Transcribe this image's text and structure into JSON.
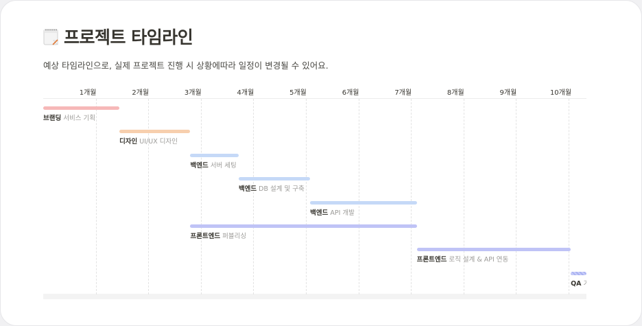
{
  "page": {
    "title": "프로젝트 타임라인",
    "subtitle": "예상 타임라인으로, 실제 프로젝트 진행 시 상황에따라 일정이 변경될 수 있어요.",
    "icon": "memo-icon"
  },
  "timeline": {
    "months": [
      "1개월",
      "2개월",
      "3개월",
      "4개월",
      "5개월",
      "6개월",
      "7개월",
      "8개월",
      "9개월",
      "10개월"
    ],
    "tasks": [
      {
        "name": "브랜딩",
        "desc": "서비스 기획",
        "start": 0.0,
        "end": 1.45,
        "color": "#f6b8b8"
      },
      {
        "name": "디자인",
        "desc": "UI/UX 디자인",
        "start": 1.45,
        "end": 2.8,
        "color": "#f7cfae"
      },
      {
        "name": "백엔드",
        "desc": "서버 세팅",
        "start": 2.8,
        "end": 3.72,
        "color": "#c5d9f7"
      },
      {
        "name": "백엔드",
        "desc": "DB 설계 및 구축",
        "start": 3.72,
        "end": 5.08,
        "color": "#c5d9f7"
      },
      {
        "name": "백엔드",
        "desc": "API 개발",
        "start": 5.08,
        "end": 7.11,
        "color": "#c5d9f7"
      },
      {
        "name": "프론트엔드",
        "desc": "퍼블리싱",
        "start": 2.8,
        "end": 7.11,
        "color": "#bfc3f6"
      },
      {
        "name": "프론트엔드",
        "desc": "로직 설계 & API 연동",
        "start": 7.11,
        "end": 10.04,
        "color": "#bfc3f6"
      },
      {
        "name": "QA",
        "desc": "기",
        "start": 10.04,
        "end": 10.5,
        "color": "#bfc3f6",
        "hatched": true
      }
    ]
  }
}
